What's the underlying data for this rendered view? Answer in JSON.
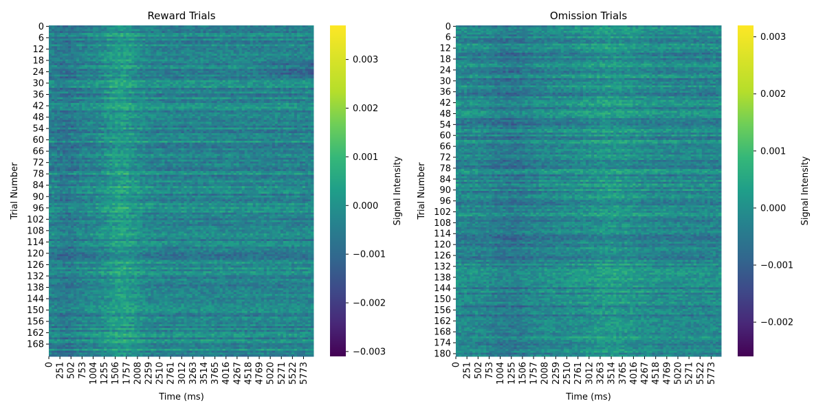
{
  "chart_data": [
    {
      "type": "heatmap",
      "title": "Reward Trials",
      "xlabel": "Time (ms)",
      "ylabel": "Trial Number",
      "colorbar_label": "Signal Intensity",
      "colormap": "viridis",
      "n_rows": 175,
      "n_time_bins": 6000,
      "y_tick_labels": [
        "0",
        "6",
        "12",
        "18",
        "24",
        "30",
        "36",
        "42",
        "48",
        "54",
        "60",
        "66",
        "72",
        "78",
        "84",
        "90",
        "96",
        "102",
        "108",
        "114",
        "120",
        "126",
        "132",
        "138",
        "144",
        "150",
        "156",
        "162",
        "168"
      ],
      "x_tick_labels": [
        "0",
        "251",
        "502",
        "753",
        "1004",
        "1255",
        "1506",
        "1757",
        "2008",
        "2259",
        "2510",
        "2761",
        "3012",
        "3263",
        "3514",
        "3765",
        "4016",
        "4267",
        "4518",
        "4769",
        "5020",
        "5271",
        "5522",
        "5773"
      ],
      "color_range": [
        -0.0031,
        0.0037
      ],
      "colorbar_ticks": [
        0.003,
        0.002,
        0.001,
        0.0,
        -0.001,
        -0.002,
        -0.003
      ],
      "colorbar_tick_labels": [
        "0.003",
        "0.002",
        "0.001",
        "0.000",
        "−0.001",
        "−0.002",
        "−0.003"
      ]
    },
    {
      "type": "heatmap",
      "title": "Omission Trials",
      "xlabel": "Time (ms)",
      "ylabel": "Trial Number",
      "colorbar_label": "Signal Intensity",
      "colormap": "viridis",
      "n_rows": 182,
      "n_time_bins": 6000,
      "y_tick_labels": [
        "0",
        "6",
        "12",
        "18",
        "24",
        "30",
        "36",
        "42",
        "48",
        "54",
        "60",
        "66",
        "72",
        "78",
        "84",
        "90",
        "96",
        "102",
        "108",
        "114",
        "120",
        "126",
        "132",
        "138",
        "144",
        "150",
        "156",
        "162",
        "168",
        "174",
        "180"
      ],
      "x_tick_labels": [
        "0",
        "251",
        "502",
        "753",
        "1004",
        "1255",
        "1506",
        "1757",
        "2008",
        "2259",
        "2510",
        "2761",
        "3012",
        "3263",
        "3514",
        "3765",
        "4016",
        "4267",
        "4518",
        "4769",
        "5020",
        "5271",
        "5522",
        "5773"
      ],
      "color_range": [
        -0.0026,
        0.0032
      ],
      "colorbar_ticks": [
        0.003,
        0.002,
        0.001,
        0.0,
        -0.001,
        -0.002
      ],
      "colorbar_tick_labels": [
        "0.003",
        "0.002",
        "0.001",
        "0.000",
        "−0.001",
        "−0.002"
      ]
    }
  ]
}
